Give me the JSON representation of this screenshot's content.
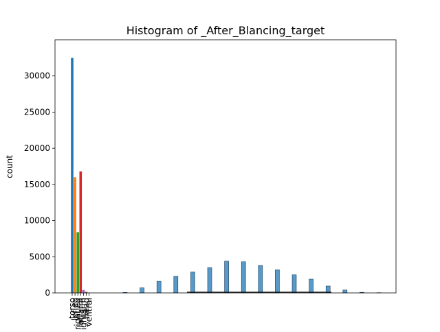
{
  "chart_data": {
    "type": "bar",
    "title": "Histogram of _After_Blancing_target",
    "xlabel": "",
    "ylabel": "count",
    "ylim": [
      0,
      35000
    ],
    "yticks": [
      0,
      5000,
      10000,
      15000,
      20000,
      25000,
      30000
    ],
    "grid": false,
    "legend": "none",
    "categorical": {
      "categories": [
        "torso",
        "lefleg",
        "rightleg",
        "leftarm",
        "rightarm",
        "head",
        "ventral"
      ],
      "values": [
        32500,
        16000,
        8400,
        16800,
        400,
        150,
        50
      ],
      "colors": [
        "#1f77b4",
        "#ff7f0e",
        "#2ca02c",
        "#d62728",
        "#9467bd",
        "#8c564b",
        "#e377c2"
      ]
    },
    "histogram": {
      "color": "#1f77b4",
      "values": [
        60,
        700,
        1600,
        2300,
        2900,
        3500,
        4400,
        4300,
        3800,
        3200,
        2500,
        1900,
        950,
        400,
        80,
        30
      ]
    }
  }
}
